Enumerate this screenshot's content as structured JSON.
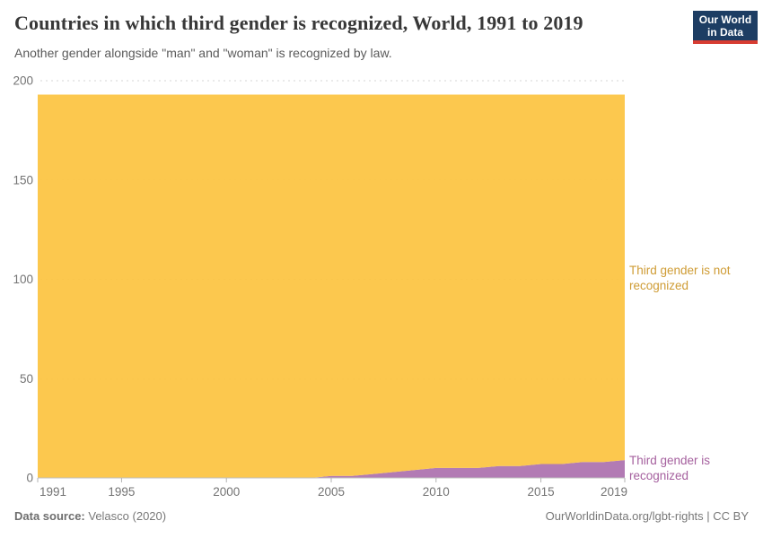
{
  "header": {
    "title": "Countries in which third gender is recognized, World, 1991 to 2019",
    "subtitle": "Another gender alongside \"man\" and \"woman\" is recognized by law.",
    "logo": {
      "line1": "Our World",
      "line2": "in Data",
      "bg_color": "#1d3d63",
      "bar_color": "#d73c32"
    }
  },
  "chart_data": {
    "type": "area",
    "stacked": true,
    "title": "Countries in which third gender is recognized, World, 1991 to 2019",
    "xlabel": "",
    "ylabel": "",
    "x": [
      1991,
      1992,
      1993,
      1994,
      1995,
      1996,
      1997,
      1998,
      1999,
      2000,
      2001,
      2002,
      2003,
      2004,
      2005,
      2006,
      2007,
      2008,
      2009,
      2010,
      2011,
      2012,
      2013,
      2014,
      2015,
      2016,
      2017,
      2018,
      2019
    ],
    "series": [
      {
        "name": "Third gender is recognized",
        "color": "#ae74b0",
        "label_color": "#a5609e",
        "values": [
          0,
          0,
          0,
          0,
          0,
          0,
          0,
          0,
          0,
          0,
          0,
          0,
          0,
          0,
          1,
          1,
          2,
          3,
          4,
          5,
          5,
          5,
          6,
          6,
          7,
          7,
          8,
          8,
          9
        ]
      },
      {
        "name": "Third gender is not recognized",
        "color": "#fcc544",
        "label_color": "#cf9c35",
        "values": [
          193,
          193,
          193,
          193,
          193,
          193,
          193,
          193,
          193,
          193,
          193,
          193,
          193,
          193,
          192,
          192,
          191,
          190,
          189,
          188,
          188,
          188,
          187,
          187,
          186,
          186,
          185,
          185,
          184
        ]
      }
    ],
    "total_countries": 193,
    "ylim": [
      0,
      200
    ],
    "yticks": [
      0,
      50,
      100,
      150,
      200
    ],
    "xticks": [
      1991,
      1995,
      2000,
      2005,
      2010,
      2015,
      2019
    ],
    "grid": "horizontal-dashed",
    "legend_position": "right-edge-labels"
  },
  "annotations": {
    "not_recognized_label": "Third gender is not recognized",
    "recognized_label": "Third gender is recognized"
  },
  "footer": {
    "source_label": "Data source:",
    "source_value": " Velasco (2020)",
    "right_text": "OurWorldinData.org/lgbt-rights | CC BY"
  }
}
